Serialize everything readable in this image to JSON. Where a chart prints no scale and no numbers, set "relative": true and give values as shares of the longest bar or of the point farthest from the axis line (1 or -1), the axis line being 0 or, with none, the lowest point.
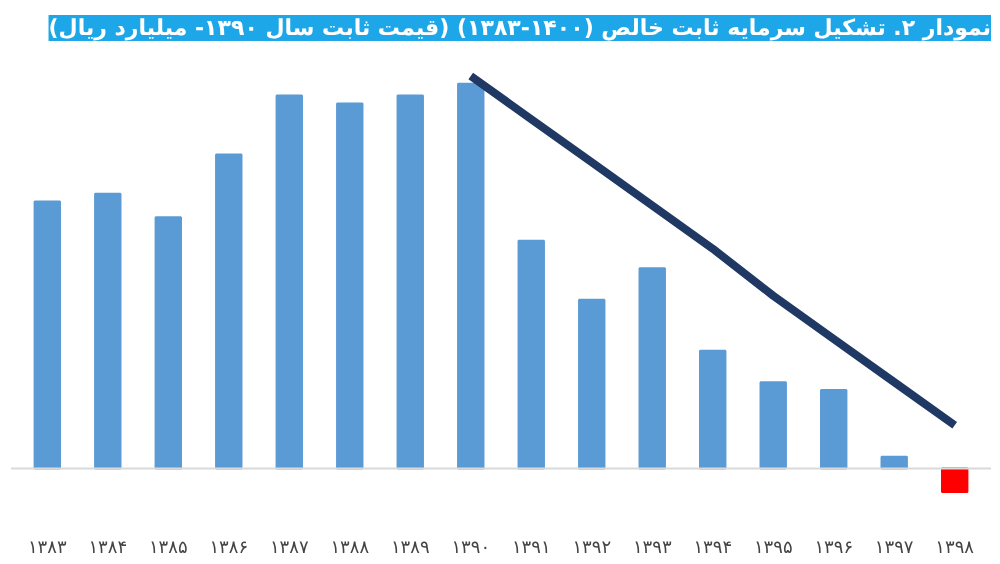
{
  "chart_data": {
    "type": "bar",
    "title": "نمودار ۲. تشکیل سرمایه ثابت خالص (۱۴۰۰-۱۳۸۳) (قیمت ثابت سال ۱۳۹۰- میلیارد ریال)",
    "categories": [
      "۱۳۸۳",
      "۱۳۸۴",
      "۱۳۸۵",
      "۱۳۸۶",
      "۱۳۸۷",
      "۱۳۸۸",
      "۱۳۸۹",
      "۱۳۹۰",
      "۱۳۹۱",
      "۱۳۹۲",
      "۱۳۹۳",
      "۱۳۹۴",
      "۱۳۹۵",
      "۱۳۹۶",
      "۱۳۹۷",
      "۱۳۹۸"
    ],
    "relative": true,
    "grid": false,
    "series": [
      {
        "color": "#5b9bd5",
        "colors": [
          null,
          null,
          null,
          null,
          null,
          null,
          null,
          null,
          null,
          null,
          null,
          null,
          null,
          null,
          null,
          "#ff0000"
        ],
        "values": [
          0.68,
          0.7,
          0.64,
          0.8,
          0.95,
          0.93,
          0.95,
          0.98,
          0.58,
          0.43,
          0.51,
          0.3,
          0.22,
          0.2,
          0.03,
          -0.06
        ]
      },
      {
        "type": "line",
        "color": "#1f3864",
        "values": [
          null,
          null,
          null,
          null,
          null,
          null,
          null,
          1.0,
          0.89,
          0.78,
          0.67,
          0.56,
          0.44,
          0.33,
          0.22,
          0.11
        ]
      }
    ]
  }
}
